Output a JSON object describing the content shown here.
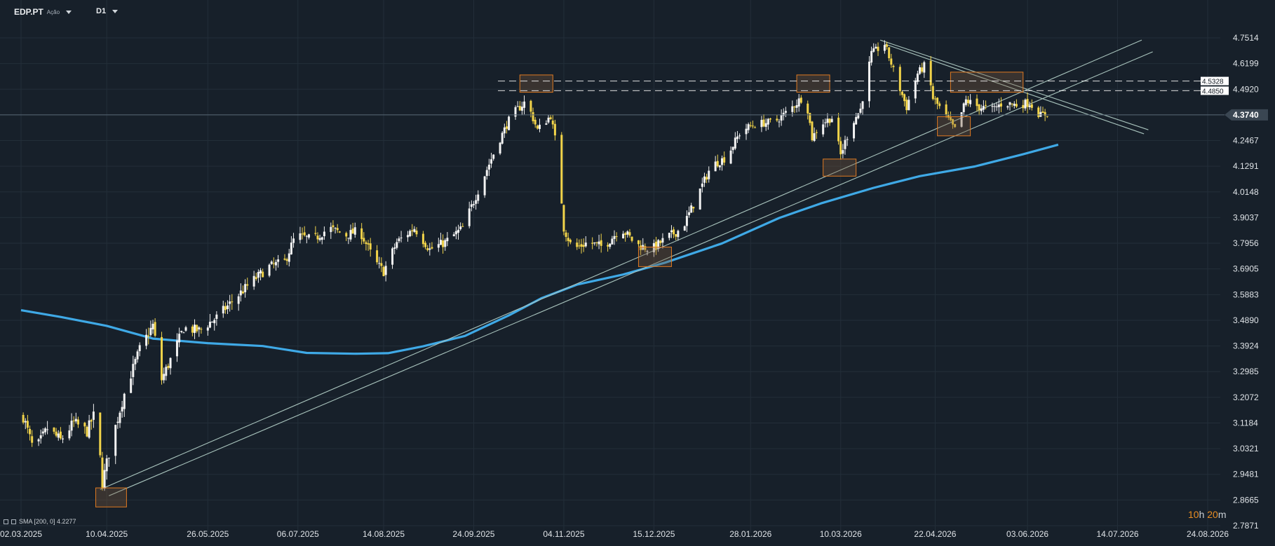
{
  "toolbar": {
    "symbol": "EDP.PT",
    "asset_type": "Ação",
    "interval": "D1"
  },
  "indicator": {
    "label": "SMA [200, 0] 4.2277"
  },
  "countdown": {
    "hours": "10",
    "hours_unit": "h",
    "minutes": "20",
    "minutes_unit": "m"
  },
  "colors": {
    "background": "#17202a",
    "grid": "#232e39",
    "candle_up": "#f2f2f2",
    "candle_down": "#f2d44a",
    "sma": "#3fa9e6",
    "box_stroke": "#e07a21",
    "trendline": "#a9c4bd",
    "level": "#ffffff",
    "current_price": "#5a6876"
  },
  "chart_data": {
    "type": "candlestick",
    "symbol": "EDP.PT",
    "timeframe": "D1",
    "x_ticks": [
      "02.03.2025",
      "10.04.2025",
      "26.05.2025",
      "06.07.2025",
      "14.08.2025",
      "24.09.2025",
      "04.11.2025",
      "15.12.2025",
      "28.01.2026",
      "10.03.2026",
      "22.04.2026",
      "03.06.2026",
      "14.07.2026",
      "24.08.2026"
    ],
    "x_range": [
      "2025-03-02",
      "2026-08-24"
    ],
    "y_ticks": [
      "4.7514",
      "4.6199",
      "4.4920",
      "4.3740",
      "4.2467",
      "4.1291",
      "4.0148",
      "3.9037",
      "3.7956",
      "3.6905",
      "3.5883",
      "3.4890",
      "3.3924",
      "3.2985",
      "3.2072",
      "3.1184",
      "3.0321",
      "2.9481",
      "2.8665",
      "2.7871"
    ],
    "y_range": [
      2.7871,
      4.7514
    ],
    "current_price": "4.3740",
    "levels": [
      {
        "label": "4.5328",
        "value": 4.5328
      },
      {
        "label": "4.4850",
        "value": 4.485
      }
    ],
    "price_path": [
      [
        "2025-03-03",
        3.14
      ],
      [
        "2025-03-08",
        3.02
      ],
      [
        "2025-03-14",
        3.1
      ],
      [
        "2025-03-20",
        3.06
      ],
      [
        "2025-03-26",
        3.12
      ],
      [
        "2025-04-01",
        3.09
      ],
      [
        "2025-04-05",
        3.16
      ],
      [
        "2025-04-08",
        2.92
      ],
      [
        "2025-04-12",
        3.05
      ],
      [
        "2025-04-18",
        3.22
      ],
      [
        "2025-04-25",
        3.38
      ],
      [
        "2025-05-01",
        3.47
      ],
      [
        "2025-05-05",
        3.27
      ],
      [
        "2025-05-10",
        3.36
      ],
      [
        "2025-05-15",
        3.46
      ],
      [
        "2025-05-22",
        3.45
      ],
      [
        "2025-05-30",
        3.5
      ],
      [
        "2025-06-07",
        3.57
      ],
      [
        "2025-06-15",
        3.64
      ],
      [
        "2025-06-23",
        3.7
      ],
      [
        "2025-06-30",
        3.72
      ],
      [
        "2025-07-05",
        3.83
      ],
      [
        "2025-07-13",
        3.81
      ],
      [
        "2025-07-20",
        3.86
      ],
      [
        "2025-07-28",
        3.83
      ],
      [
        "2025-08-03",
        3.85
      ],
      [
        "2025-08-10",
        3.72
      ],
      [
        "2025-08-14",
        3.68
      ],
      [
        "2025-08-20",
        3.8
      ],
      [
        "2025-08-28",
        3.86
      ],
      [
        "2025-09-04",
        3.77
      ],
      [
        "2025-09-11",
        3.8
      ],
      [
        "2025-09-19",
        3.86
      ],
      [
        "2025-09-26",
        4.02
      ],
      [
        "2025-10-04",
        4.21
      ],
      [
        "2025-10-11",
        4.37
      ],
      [
        "2025-10-18",
        4.44
      ],
      [
        "2025-10-23",
        4.3
      ],
      [
        "2025-10-29",
        4.37
      ],
      [
        "2025-11-01",
        4.2
      ],
      [
        "2025-11-04",
        3.86
      ],
      [
        "2025-11-08",
        3.77
      ],
      [
        "2025-11-15",
        3.8
      ],
      [
        "2025-11-22",
        3.78
      ],
      [
        "2025-11-30",
        3.86
      ],
      [
        "2025-12-07",
        3.79
      ],
      [
        "2025-12-14",
        3.77
      ],
      [
        "2025-12-21",
        3.82
      ],
      [
        "2025-12-28",
        3.86
      ],
      [
        "2026-01-03",
        3.98
      ],
      [
        "2026-01-10",
        4.13
      ],
      [
        "2026-01-17",
        4.17
      ],
      [
        "2026-01-24",
        4.3
      ],
      [
        "2026-01-31",
        4.33
      ],
      [
        "2026-02-08",
        4.34
      ],
      [
        "2026-02-15",
        4.4
      ],
      [
        "2026-02-22",
        4.47
      ],
      [
        "2026-02-25",
        4.26
      ],
      [
        "2026-03-01",
        4.33
      ],
      [
        "2026-03-06",
        4.36
      ],
      [
        "2026-03-10",
        4.18
      ],
      [
        "2026-03-15",
        4.33
      ],
      [
        "2026-03-19",
        4.4
      ],
      [
        "2026-03-24",
        4.67
      ],
      [
        "2026-03-30",
        4.72
      ],
      [
        "2026-04-05",
        4.52
      ],
      [
        "2026-04-09",
        4.41
      ],
      [
        "2026-04-14",
        4.57
      ],
      [
        "2026-04-18",
        4.62
      ],
      [
        "2026-04-21",
        4.45
      ],
      [
        "2026-04-26",
        4.38
      ],
      [
        "2026-05-01",
        4.3
      ],
      [
        "2026-05-06",
        4.44
      ],
      [
        "2026-05-12",
        4.41
      ],
      [
        "2026-05-18",
        4.4
      ],
      [
        "2026-05-23",
        4.43
      ],
      [
        "2026-05-29",
        4.42
      ],
      [
        "2026-06-04",
        4.43
      ],
      [
        "2026-06-09",
        4.37
      ],
      [
        "2026-06-12",
        4.38
      ]
    ],
    "sma": {
      "name": "SMA [200, 0]",
      "last": 4.2277,
      "points": [
        [
          "2025-03-02",
          3.528
        ],
        [
          "2025-03-20",
          3.502
        ],
        [
          "2025-04-10",
          3.468
        ],
        [
          "2025-05-01",
          3.42
        ],
        [
          "2025-05-26",
          3.403
        ],
        [
          "2025-06-20",
          3.392
        ],
        [
          "2025-07-10",
          3.367
        ],
        [
          "2025-08-01",
          3.364
        ],
        [
          "2025-08-16",
          3.366
        ],
        [
          "2025-09-01",
          3.391
        ],
        [
          "2025-09-20",
          3.43
        ],
        [
          "2025-10-10",
          3.508
        ],
        [
          "2025-10-25",
          3.575
        ],
        [
          "2025-11-10",
          3.628
        ],
        [
          "2025-12-01",
          3.668
        ],
        [
          "2025-12-20",
          3.716
        ],
        [
          "2026-01-15",
          3.795
        ],
        [
          "2026-02-10",
          3.902
        ],
        [
          "2026-03-01",
          3.965
        ],
        [
          "2026-03-25",
          4.033
        ],
        [
          "2026-04-15",
          4.085
        ],
        [
          "2026-05-10",
          4.128
        ],
        [
          "2026-06-01",
          4.184
        ],
        [
          "2026-06-17",
          4.228
        ]
      ]
    },
    "trendlines": [
      {
        "points": [
          [
            "2025-04-07",
            2.9
          ],
          [
            "2026-07-25",
            4.74
          ]
        ]
      },
      {
        "points": [
          [
            "2025-04-11",
            2.88
          ],
          [
            "2026-07-30",
            4.68
          ]
        ]
      },
      {
        "points": [
          [
            "2026-03-28",
            4.74
          ],
          [
            "2026-07-28",
            4.3
          ]
        ]
      },
      {
        "points": [
          [
            "2026-03-30",
            4.72
          ],
          [
            "2026-07-26",
            4.28
          ]
        ]
      }
    ],
    "zones": [
      {
        "from": "2025-04-05",
        "to": "2025-04-19",
        "low": 2.845,
        "high": 2.905
      },
      {
        "from": "2025-10-15",
        "to": "2025-10-30",
        "low": 4.478,
        "high": 4.563
      },
      {
        "from": "2025-12-08",
        "to": "2025-12-23",
        "low": 3.7,
        "high": 3.78
      },
      {
        "from": "2026-02-18",
        "to": "2026-03-05",
        "low": 4.478,
        "high": 4.563
      },
      {
        "from": "2026-03-02",
        "to": "2026-03-17",
        "low": 4.085,
        "high": 4.162
      },
      {
        "from": "2026-04-23",
        "to": "2026-05-08",
        "low": 4.27,
        "high": 4.365
      },
      {
        "from": "2026-04-29",
        "to": "2026-06-01",
        "low": 4.478,
        "high": 4.577
      }
    ]
  }
}
